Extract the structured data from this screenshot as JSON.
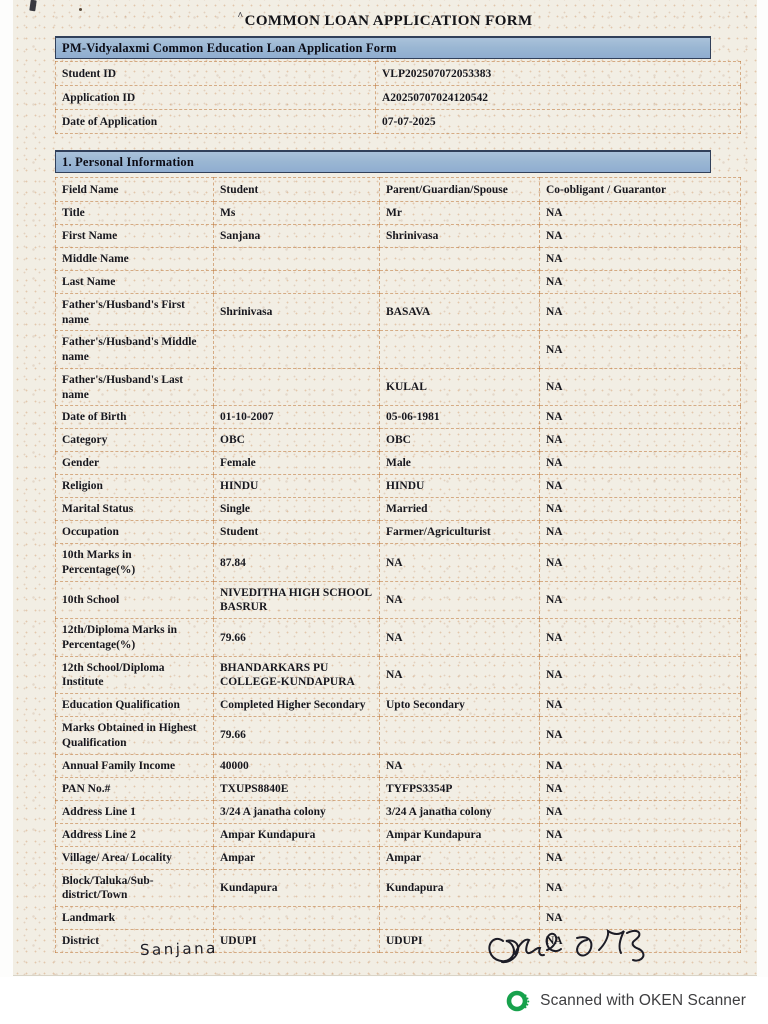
{
  "title": {
    "mark": "^",
    "text": "COMMON LOAN APPLICATION FORM"
  },
  "form_header": "PM-Vidyalaxmi Common Education Loan Application Form",
  "meta_table": {
    "rows": [
      {
        "label": "Student ID",
        "value": "VLP202507072053383"
      },
      {
        "label": "Application ID",
        "value": "A20250707024120542"
      },
      {
        "label": "Date of Application",
        "value": "07-07-2025"
      }
    ]
  },
  "section1": {
    "title": "1. Personal Information",
    "columns": [
      "Field Name",
      "Student",
      "Parent/Guardian/Spouse",
      "Co-obligant / Guarantor"
    ],
    "rows": [
      [
        "Title",
        "Ms",
        "Mr",
        "NA"
      ],
      [
        "First Name",
        "Sanjana",
        "Shrinivasa",
        "NA"
      ],
      [
        "Middle Name",
        "",
        "",
        "NA"
      ],
      [
        "Last Name",
        "",
        "",
        "NA"
      ],
      [
        "Father's/Husband's First name",
        "Shrinivasa",
        "BASAVA",
        "NA"
      ],
      [
        "Father's/Husband's Middle name",
        "",
        "",
        "NA"
      ],
      [
        "Father's/Husband's Last name",
        "",
        "KULAL",
        "NA"
      ],
      [
        "Date of Birth",
        "01-10-2007",
        "05-06-1981",
        "NA"
      ],
      [
        "Category",
        "OBC",
        "OBC",
        "NA"
      ],
      [
        "Gender",
        "Female",
        "Male",
        "NA"
      ],
      [
        "Religion",
        "HINDU",
        "HINDU",
        "NA"
      ],
      [
        "Marital Status",
        "Single",
        "Married",
        "NA"
      ],
      [
        "Occupation",
        "Student",
        "Farmer/Agriculturist",
        "NA"
      ],
      [
        "10th Marks in Percentage(%)",
        "87.84",
        "NA",
        "NA"
      ],
      [
        "10th School",
        "NIVEDITHA HIGH SCHOOL BASRUR",
        "NA",
        "NA"
      ],
      [
        "12th/Diploma Marks in Percentage(%)",
        "79.66",
        "NA",
        "NA"
      ],
      [
        "12th School/Diploma Institute",
        "BHANDARKARS PU COLLEGE-KUNDAPURA",
        "NA",
        "NA"
      ],
      [
        "Education Qualification",
        "Completed Higher Secondary",
        "Upto Secondary",
        "NA"
      ],
      [
        "Marks Obtained in Highest Qualification",
        "79.66",
        "",
        "NA"
      ],
      [
        "Annual Family Income",
        "40000",
        "NA",
        "NA"
      ],
      [
        "PAN No.#",
        "TXUPS8840E",
        "TYFPS3354P",
        "NA"
      ],
      [
        "Address Line 1",
        "3/24 A janatha colony",
        "3/24 A janatha colony",
        "NA"
      ],
      [
        "Address Line 2",
        "Ampar Kundapura",
        "Ampar Kundapura",
        "NA"
      ],
      [
        "Village/ Area/ Locality",
        "Ampar",
        "Ampar",
        "NA"
      ],
      [
        "Block/Taluka/Sub-district/Town",
        "Kundapura",
        "Kundapura",
        "NA"
      ],
      [
        "Landmark",
        "",
        "",
        "NA"
      ],
      [
        "District",
        "UDUPI",
        "UDUPI",
        "NA"
      ]
    ]
  },
  "signatures": {
    "student": "Sanjana"
  },
  "footer": {
    "scanner_text": "Scanned with OKEN Scanner"
  },
  "colors": {
    "header_bar": "#9bb7d3",
    "table_border": "#be7434",
    "paper": "#f2eee4",
    "oken_green": "#17a14c",
    "footer_text": "#3e3e40"
  }
}
